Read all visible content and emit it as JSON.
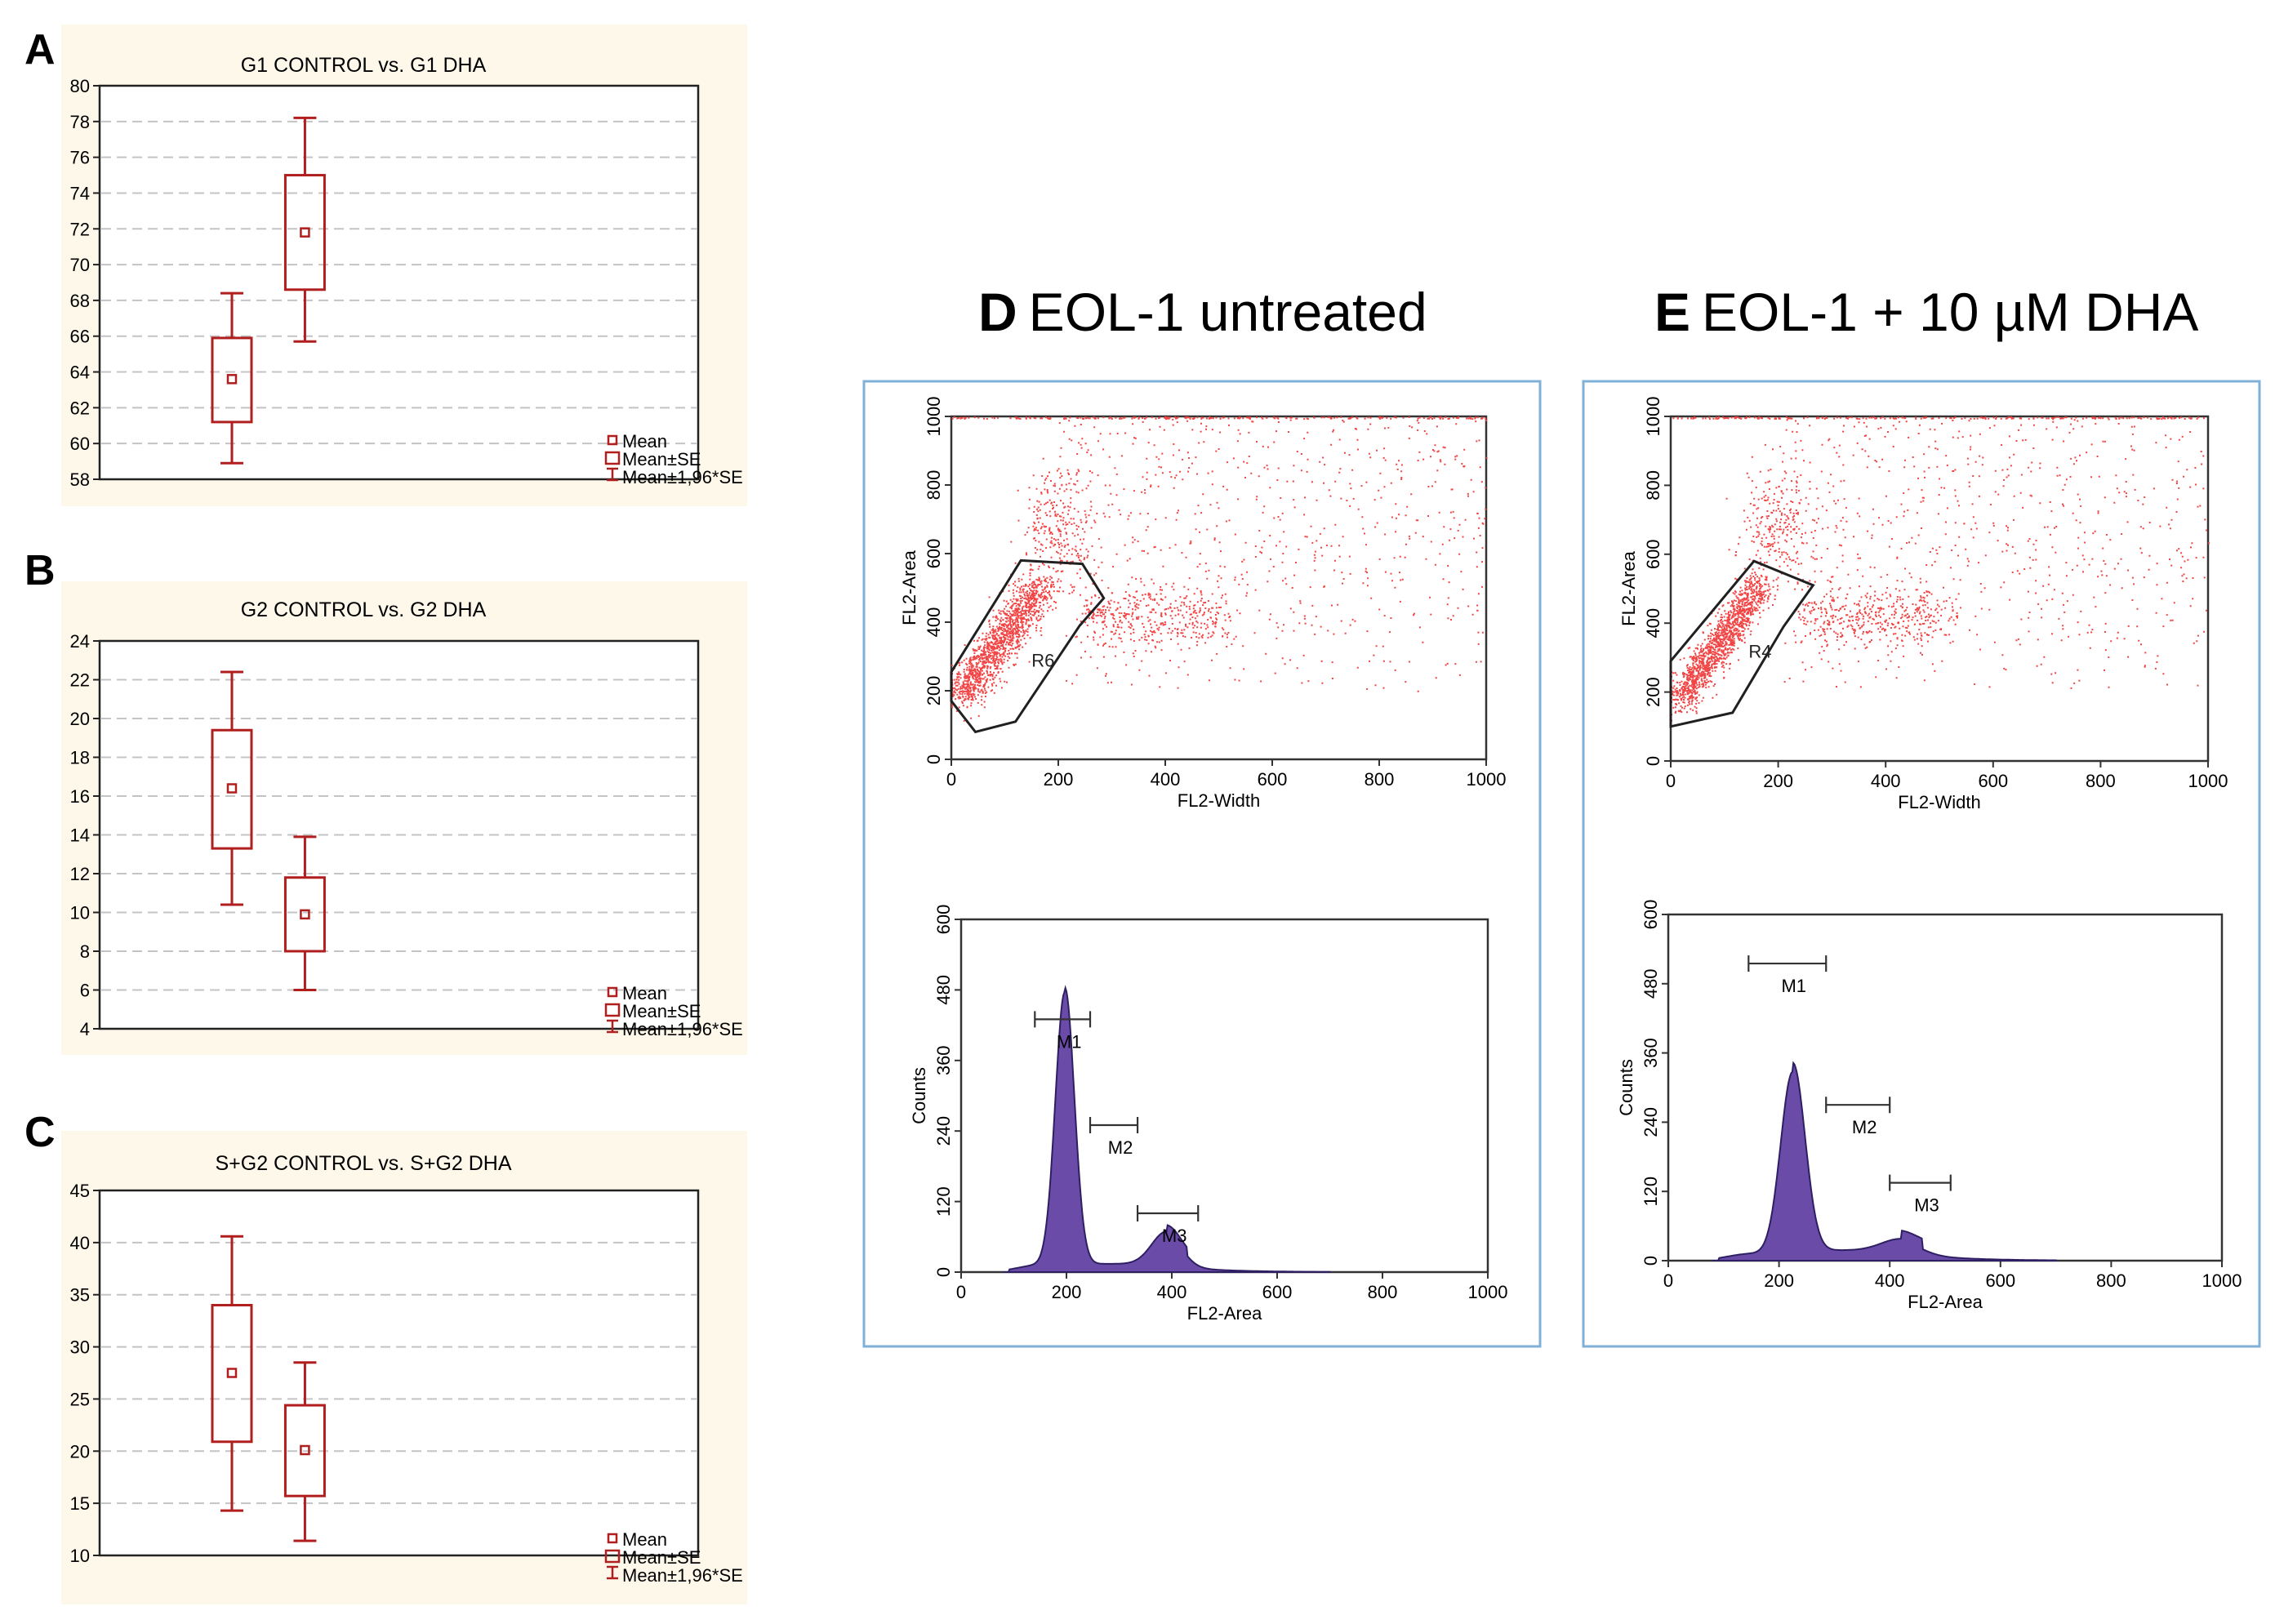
{
  "colors": {
    "box": "#b01e1e",
    "panel_bg": "#fdf8ea",
    "grid": "#c4c4c4",
    "dot": "#f24545",
    "hist": "#6a4ba8",
    "hist_edge": "#2e1f63",
    "frame": "#7fb1d8",
    "gate": "#202020"
  },
  "panel_letters": {
    "a": "A",
    "b": "B",
    "c": "C"
  },
  "legend": {
    "mean": "Mean",
    "se": "Mean±SE",
    "ci": "Mean±1,96*SE"
  },
  "flow_titles": {
    "d_letter": "D",
    "d_text": "EOL-1 untreated",
    "e_letter": "E",
    "e_text": "EOL-1 + 10 µM DHA"
  },
  "chart_data": [
    {
      "id": "A",
      "type": "box",
      "title": "G1 CONTROL  vs.   G1 DHA",
      "ylim": [
        58,
        80
      ],
      "ticks": [
        58,
        60,
        62,
        64,
        66,
        68,
        70,
        72,
        74,
        76,
        78,
        80
      ],
      "grid": true,
      "groups": [
        {
          "name": "G1 CONTROL",
          "mean": 63.6,
          "se_low": 61.2,
          "se_high": 65.9,
          "ci_low": 58.9,
          "ci_high": 68.4
        },
        {
          "name": "G1 DHA",
          "mean": 71.8,
          "se_low": 68.6,
          "se_high": 75.0,
          "ci_low": 65.7,
          "ci_high": 78.2
        }
      ]
    },
    {
      "id": "B",
      "type": "box",
      "title": "G2 CONTROL  vs.   G2 DHA",
      "ylim": [
        4,
        24
      ],
      "ticks": [
        4,
        6,
        8,
        10,
        12,
        14,
        16,
        18,
        20,
        22,
        24
      ],
      "grid": true,
      "groups": [
        {
          "name": "G2 CONTROL",
          "mean": 16.4,
          "se_low": 13.3,
          "se_high": 19.4,
          "ci_low": 10.4,
          "ci_high": 22.4
        },
        {
          "name": "G2 DHA",
          "mean": 9.9,
          "se_low": 8.0,
          "se_high": 11.8,
          "ci_low": 6.0,
          "ci_high": 13.9
        }
      ]
    },
    {
      "id": "C",
      "type": "box",
      "title": "S+G2 CONTROL  vs.   S+G2 DHA",
      "ylim": [
        10,
        45
      ],
      "ticks": [
        10,
        15,
        20,
        25,
        30,
        35,
        40,
        45
      ],
      "grid": true,
      "groups": [
        {
          "name": "S+G2 CONTROL",
          "mean": 27.5,
          "se_low": 20.9,
          "se_high": 34.0,
          "ci_low": 14.3,
          "ci_high": 40.6
        },
        {
          "name": "S+G2 DHA",
          "mean": 20.1,
          "se_low": 15.7,
          "se_high": 24.4,
          "ci_low": 11.4,
          "ci_high": 28.5
        }
      ]
    },
    {
      "id": "D-dot",
      "type": "scatter",
      "xlabel": "FL2-Width",
      "ylabel": "FL2-Area",
      "xlim": [
        0,
        1000
      ],
      "ylim": [
        0,
        1000
      ],
      "xticks": [
        0,
        200,
        400,
        600,
        800,
        1000
      ],
      "yticks": [
        0,
        200,
        400,
        600,
        800,
        1000
      ],
      "gate_label": "R6",
      "gate": [
        [
          0,
          210
        ],
        [
          0,
          170
        ],
        [
          45,
          80
        ],
        [
          120,
          110
        ],
        [
          240,
          390
        ],
        [
          285,
          470
        ],
        [
          245,
          570
        ],
        [
          130,
          580
        ],
        [
          0,
          255
        ]
      ]
    },
    {
      "id": "E-dot",
      "type": "scatter",
      "xlabel": "FL2-Width",
      "ylabel": "FL2-Area",
      "xlim": [
        0,
        1000
      ],
      "ylim": [
        0,
        1000
      ],
      "xticks": [
        0,
        200,
        400,
        600,
        800,
        1000
      ],
      "yticks": [
        0,
        200,
        400,
        600,
        800,
        1000
      ],
      "gate_label": "R4",
      "gate": [
        [
          0,
          270
        ],
        [
          0,
          225
        ],
        [
          0,
          100
        ],
        [
          115,
          140
        ],
        [
          210,
          390
        ],
        [
          265,
          510
        ],
        [
          155,
          580
        ],
        [
          0,
          290
        ]
      ]
    },
    {
      "id": "D-hist",
      "type": "area",
      "xlabel": "FL2-Area",
      "ylabel": "Counts",
      "xlim": [
        0,
        1000
      ],
      "ylim": [
        0,
        600
      ],
      "xticks": [
        0,
        200,
        400,
        600,
        800,
        1000
      ],
      "yticks": [
        0,
        120,
        240,
        360,
        480,
        600
      ],
      "peaks": [
        {
          "x": 197,
          "y": 490
        },
        {
          "x": 390,
          "y": 75
        }
      ],
      "markers": [
        {
          "label": "M1",
          "x1": 140,
          "x2": 245,
          "y": 430
        },
        {
          "label": "M2",
          "x1": 245,
          "x2": 335,
          "y": 250
        },
        {
          "label": "M3",
          "x1": 335,
          "x2": 450,
          "y": 100
        }
      ]
    },
    {
      "id": "E-hist",
      "type": "area",
      "xlabel": "FL2-Area",
      "ylabel": "Counts",
      "xlim": [
        0,
        1000
      ],
      "ylim": [
        0,
        600
      ],
      "xticks": [
        0,
        200,
        400,
        600,
        800,
        1000
      ],
      "yticks": [
        0,
        120,
        240,
        360,
        480,
        600
      ],
      "peaks": [
        {
          "x": 225,
          "y": 340
        },
        {
          "x": 420,
          "y": 35
        }
      ],
      "markers": [
        {
          "label": "M1",
          "x1": 145,
          "x2": 285,
          "y": 515
        },
        {
          "label": "M2",
          "x1": 285,
          "x2": 400,
          "y": 270
        },
        {
          "label": "M3",
          "x1": 400,
          "x2": 510,
          "y": 135
        }
      ]
    }
  ]
}
